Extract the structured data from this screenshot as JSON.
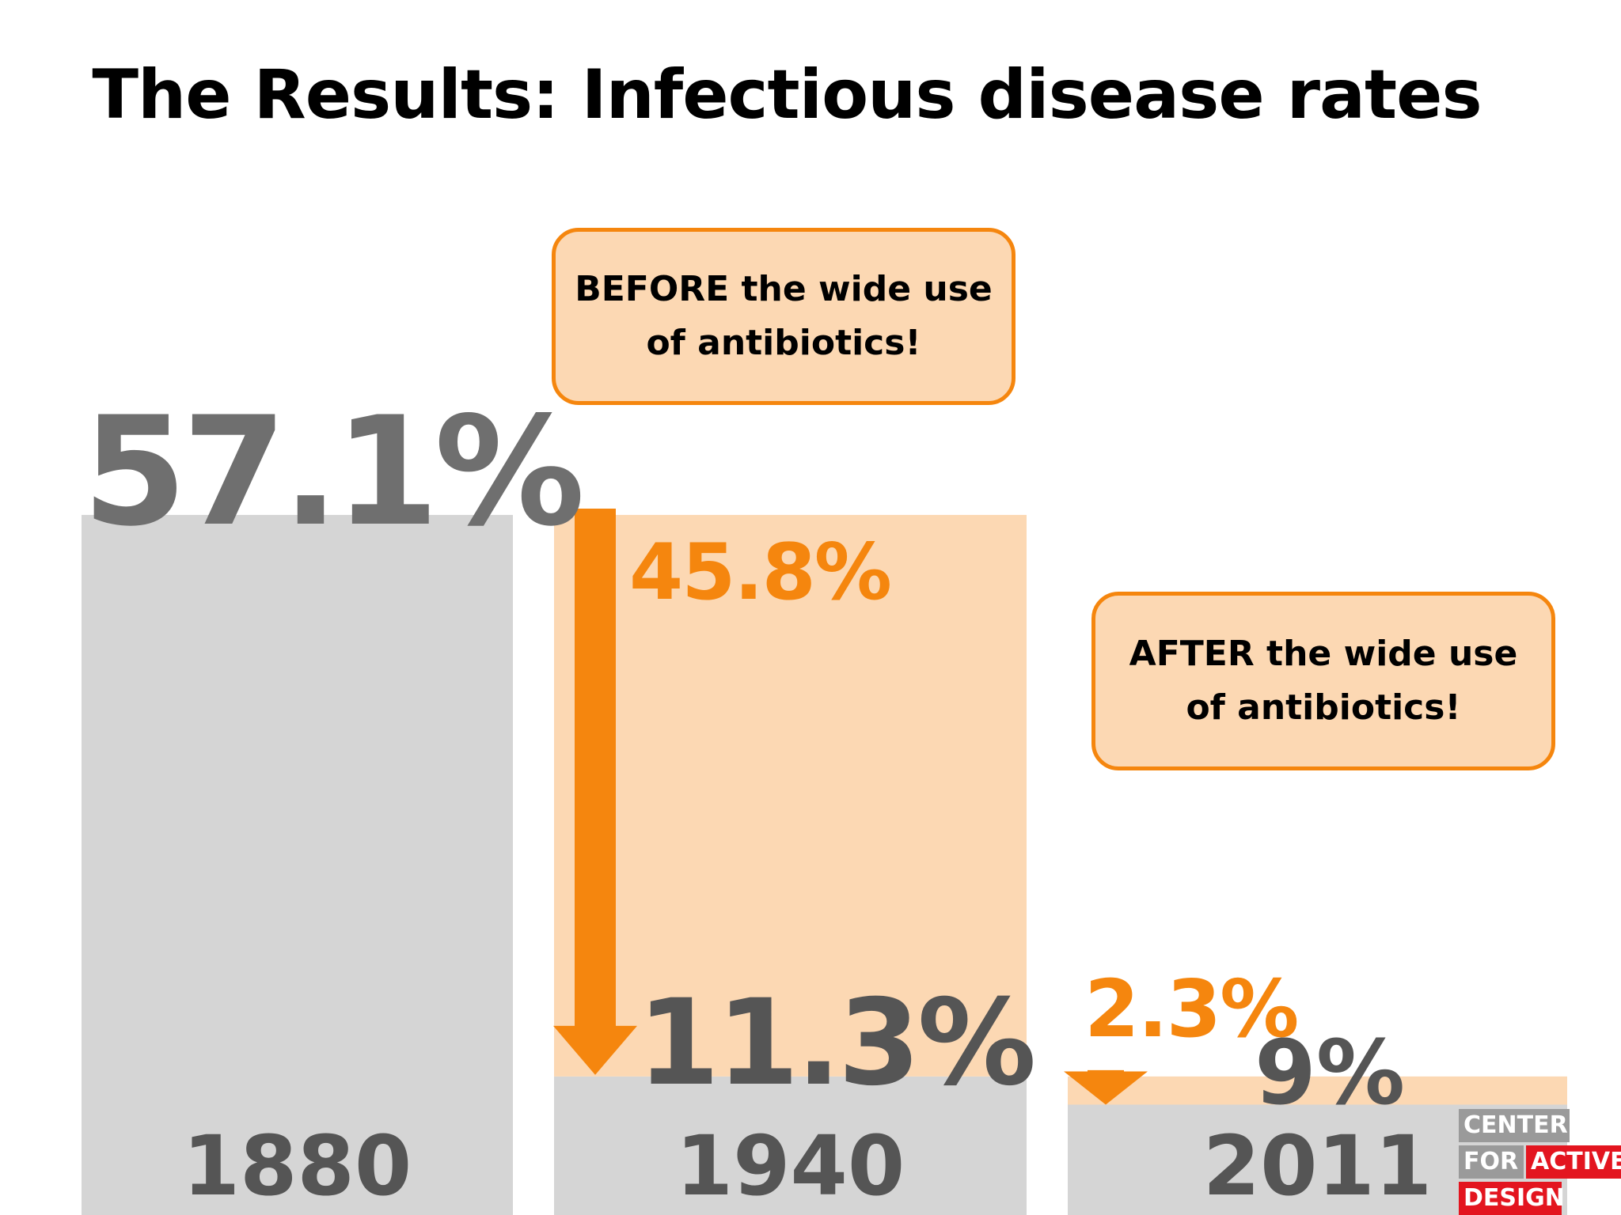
{
  "title": "The Results: Infectious disease rates",
  "colors": {
    "gray_bar": "#d5d5d5",
    "orange_bar": "#fcd8b3",
    "orange": "#f5860e",
    "dark_text": "#555555",
    "value_gray": "#6f6f6f"
  },
  "callouts": {
    "before": {
      "line1": "BEFORE the wide use",
      "line2": "of antibiotics!"
    },
    "after": {
      "line1": "AFTER the wide use",
      "line2": "of antibiotics!"
    }
  },
  "chart_data": {
    "type": "bar",
    "categories": [
      "1880",
      "1940",
      "2011"
    ],
    "ylim": [
      0,
      60
    ],
    "series": [
      {
        "name": "",
        "values": [
          57.1,
          11.3,
          9
        ]
      },
      {
        "name": "",
        "values": [
          null,
          45.8,
          2.3
        ]
      }
    ],
    "labels": {
      "total": "57.1%",
      "reduction_1940": "45.8%",
      "value_1940": "11.3%",
      "reduction_2011": "2.3%",
      "value_2011": "9%"
    }
  },
  "logo": {
    "line1": "CENTER",
    "line2a": "FOR",
    "line2b": "ACTIVE",
    "line3": "DESIGN"
  }
}
